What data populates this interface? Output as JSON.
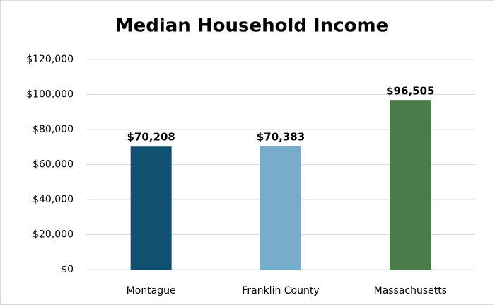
{
  "chart_data": {
    "type": "bar",
    "title": "Median Household Income",
    "categories": [
      "Montague",
      "Franklin County",
      "Massachusetts"
    ],
    "values": [
      70208,
      70383,
      96505
    ],
    "value_labels": [
      "$70,208",
      "$70,383",
      "$96,505"
    ],
    "colors": [
      "#10516f",
      "#77adc9",
      "#4a7c4a"
    ],
    "ylim": [
      0,
      120000
    ],
    "yticks": [
      {
        "value": 0,
        "label": "$0"
      },
      {
        "value": 20000,
        "label": "$20,000"
      },
      {
        "value": 40000,
        "label": "$40,000"
      },
      {
        "value": 60000,
        "label": "$60,000"
      },
      {
        "value": 80000,
        "label": "$80,000"
      },
      {
        "value": 100000,
        "label": "$100,000"
      },
      {
        "value": 120000,
        "label": "$120,000"
      }
    ],
    "grid": true
  }
}
